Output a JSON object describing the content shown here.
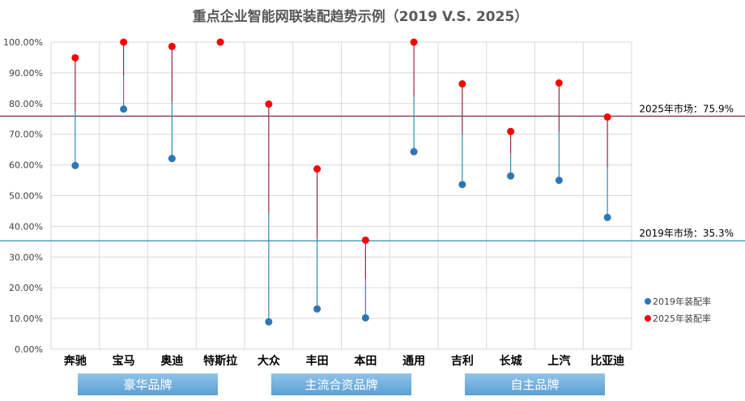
{
  "chart_data": {
    "type": "scatter",
    "title": "重点企业智能网联装配趋势示例（2019 V.S. 2025）",
    "categories": [
      "奔驰",
      "宝马",
      "奥迪",
      "特斯拉",
      "大众",
      "丰田",
      "本田",
      "通用",
      "吉利",
      "长城",
      "上汽",
      "比亚迪"
    ],
    "series": [
      {
        "name": "2019年装配率",
        "color": "#2e75b6",
        "values": [
          59.8,
          78.2,
          62.1,
          100.0,
          8.9,
          13.1,
          10.2,
          64.3,
          53.6,
          56.4,
          55.0,
          42.9
        ]
      },
      {
        "name": "2025年装配率",
        "color": "#ff0000",
        "values": [
          94.9,
          100.0,
          98.6,
          100.0,
          79.8,
          58.7,
          35.5,
          100.0,
          86.4,
          70.9,
          86.7,
          75.6
        ]
      }
    ],
    "ylim": [
      0,
      100
    ],
    "yticks": [
      "0.00%",
      "10.00%",
      "20.00%",
      "30.00%",
      "40.00%",
      "50.00%",
      "60.00%",
      "70.00%",
      "80.00%",
      "90.00%",
      "100.00%"
    ],
    "reference_lines": [
      {
        "label": "2025年市场：75.9%",
        "value": 75.9,
        "color": "#7b2c52"
      },
      {
        "label": "2019年市场：35.3%",
        "value": 35.3,
        "color": "#2e8bb0"
      }
    ],
    "groups": [
      {
        "label": "豪华品牌",
        "from": 0,
        "to": 3
      },
      {
        "label": "主流合资品牌",
        "from": 4,
        "to": 7
      },
      {
        "label": "自主品牌",
        "from": 8,
        "to": 11
      }
    ],
    "grid": true,
    "legend_position": "right"
  }
}
